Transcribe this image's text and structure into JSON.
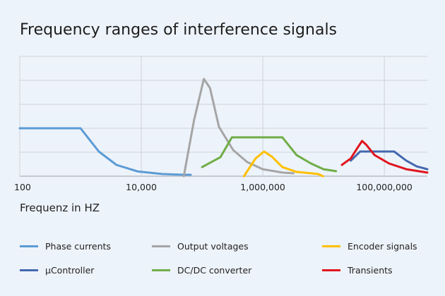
{
  "chart_data": {
    "type": "line",
    "title": "Frequency ranges of interference signals",
    "xlabel": "Frequenz in HZ",
    "ylabel": "",
    "xscale": "log",
    "xlim": [
      100,
      510000000
    ],
    "ylim": [
      0,
      5
    ],
    "x_ticks": [
      100,
      10000,
      1000000,
      100000000
    ],
    "x_tick_labels": [
      "100",
      "10,000",
      "1,000,000",
      "100,000,000"
    ],
    "y_tick_labels": [],
    "grid": true,
    "legend_position": "bottom",
    "series": [
      {
        "name": "Phase currents",
        "color": "#5b9bd5",
        "x": [
          100,
          1000,
          2000,
          3900,
          8700,
          22000,
          50000,
          65000
        ],
        "y": [
          2.0,
          2.0,
          1.03,
          0.47,
          0.2,
          0.09,
          0.06,
          0.06
        ]
      },
      {
        "name": "Output voltages",
        "color": "#a5a5a5",
        "x": [
          50000,
          74000,
          107000,
          135000,
          190000,
          325000,
          550000,
          1000000,
          2100000,
          3200000
        ],
        "y": [
          0,
          2.35,
          4.06,
          3.68,
          2.06,
          1.09,
          0.59,
          0.29,
          0.15,
          0.12
        ]
      },
      {
        "name": "Encoder signals",
        "color": "#ffc000",
        "x": [
          490000,
          760000,
          1050000,
          1400000,
          2100000,
          3600000,
          8100000,
          9800000
        ],
        "y": [
          0,
          0.74,
          1.03,
          0.82,
          0.38,
          0.18,
          0.09,
          0
        ]
      },
      {
        "name": "µController",
        "color": "#4468b0",
        "x": [
          28000000,
          40000000,
          145000000,
          230000000,
          340000000,
          510000000
        ],
        "y": [
          0.65,
          1.03,
          1.03,
          0.65,
          0.41,
          0.29
        ]
      },
      {
        "name": "DC/DC converter",
        "color": "#70ad47",
        "x": [
          100000,
          200000,
          310000,
          2100000,
          3600000,
          6200000,
          10000000,
          16000000
        ],
        "y": [
          0.38,
          0.79,
          1.62,
          1.62,
          0.88,
          0.53,
          0.29,
          0.21
        ]
      },
      {
        "name": "Transients",
        "color": "#e0141e",
        "x": [
          20000000,
          28000000,
          36000000,
          43000000,
          50000000,
          69000000,
          120000000,
          230000000,
          510000000
        ],
        "y": [
          0.47,
          0.74,
          1.18,
          1.47,
          1.32,
          0.88,
          0.53,
          0.29,
          0.15
        ]
      }
    ]
  }
}
